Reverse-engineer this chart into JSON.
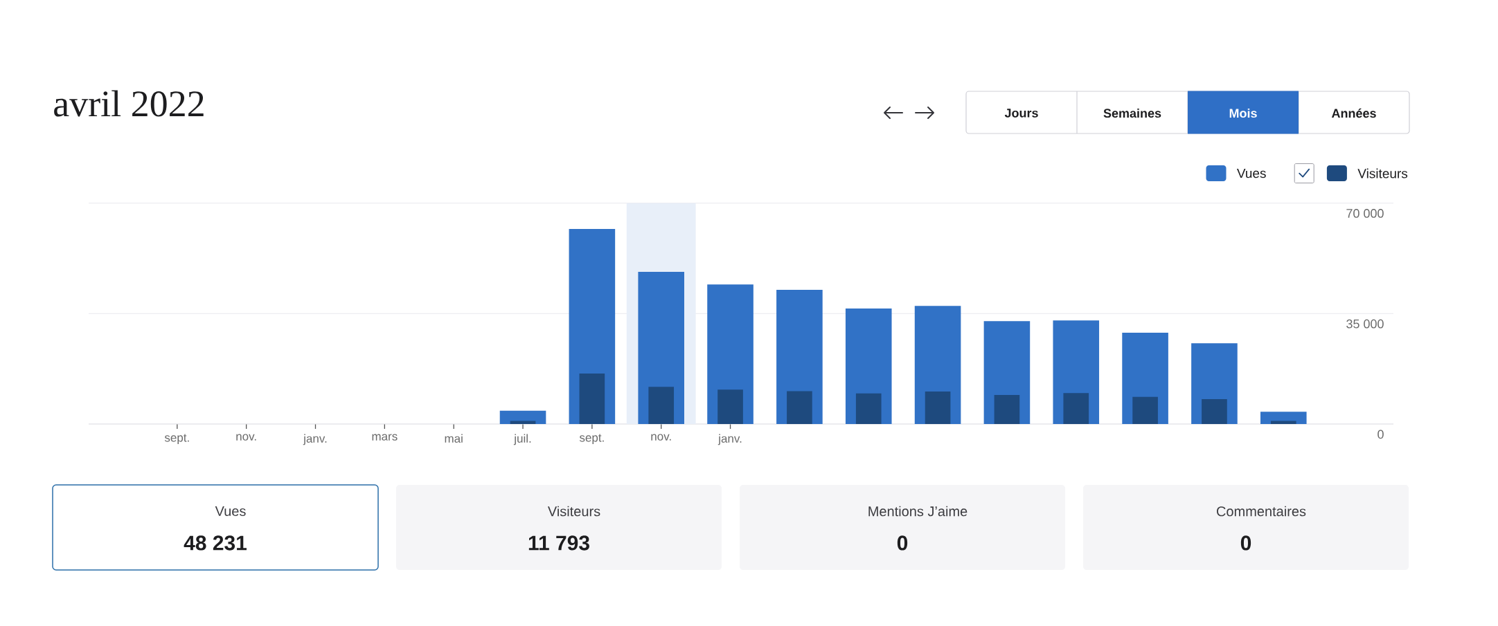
{
  "chart_data": {
    "type": "bar",
    "title": "avril 2022",
    "categories": [
      "sept.",
      "nov.",
      "janv.",
      "mars",
      "mai",
      "juil.",
      "sept.",
      "nov.",
      "janv.",
      null,
      null,
      null,
      null,
      null,
      null,
      null,
      null
    ],
    "series": [
      {
        "color": "#e8eff9",
        "values": [
          null,
          null,
          null,
          null,
          null,
          null,
          null,
          70000,
          null,
          null,
          null,
          null,
          null,
          null,
          null,
          null,
          null
        ]
      },
      {
        "name": "Vues",
        "color": "#3172c6",
        "values": [
          null,
          null,
          null,
          null,
          null,
          4200,
          61800,
          48200,
          44200,
          42500,
          36600,
          37400,
          32600,
          32800,
          28900,
          25600,
          3900
        ]
      },
      {
        "name": "Visiteurs",
        "color": "#1e4a7e",
        "values": [
          null,
          null,
          null,
          null,
          null,
          1000,
          16000,
          11800,
          10900,
          10400,
          9700,
          10300,
          9200,
          9800,
          8600,
          7900,
          1000
        ]
      }
    ],
    "ylim": [
      0,
      70000
    ],
    "yticks": [
      0,
      {
        "value": 35000,
        "label": "35 000"
      },
      {
        "value": 70000,
        "label": "70 000"
      }
    ],
    "grid": "y",
    "legend": "top right",
    "annotations": [
      "Jours",
      "Semaines",
      "Mois",
      "Années",
      "Vues",
      "48 231",
      "Visiteurs",
      "11 793",
      "Mentions J’aime",
      "0",
      "Commentaires",
      "0"
    ]
  }
}
